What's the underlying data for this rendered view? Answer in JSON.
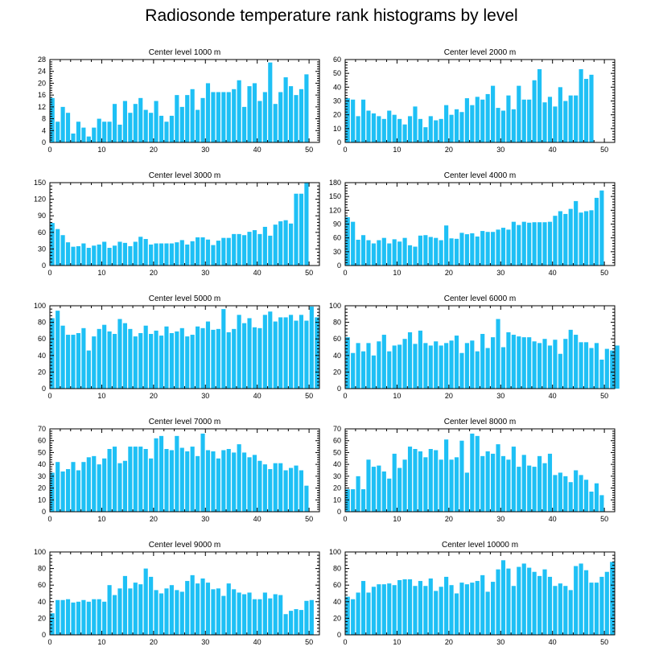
{
  "title": "Radiosonde temperature rank histograms by level",
  "chart_data": [
    {
      "type": "bar",
      "title": "Center level 1000 m",
      "xlim": [
        0,
        52
      ],
      "ylim": [
        0,
        28
      ],
      "xticks": [
        0,
        10,
        20,
        30,
        40,
        50
      ],
      "yticks": [
        0,
        4,
        8,
        12,
        16,
        20,
        24,
        28
      ],
      "values": [
        15,
        7,
        12,
        10,
        3,
        7,
        5,
        2,
        5,
        8,
        7,
        7,
        13,
        6,
        14,
        10,
        13,
        15,
        11,
        10,
        14,
        9,
        7,
        9,
        16,
        12,
        16,
        18,
        11,
        15,
        20,
        17,
        17,
        17,
        17,
        18,
        21,
        12,
        19,
        20,
        14,
        17,
        27,
        13,
        17,
        22,
        19,
        16,
        18,
        23
      ]
    },
    {
      "type": "bar",
      "title": "Center level 2000 m",
      "xlim": [
        0,
        52
      ],
      "ylim": [
        0,
        60
      ],
      "xticks": [
        0,
        10,
        20,
        30,
        40,
        50
      ],
      "yticks": [
        0,
        10,
        20,
        30,
        40,
        50,
        60
      ],
      "values": [
        32,
        31,
        19,
        31,
        23,
        21,
        19,
        17,
        23,
        20,
        17,
        13,
        19,
        26,
        17,
        11,
        19,
        16,
        17,
        27,
        20,
        24,
        22,
        32,
        27,
        33,
        31,
        35,
        41,
        25,
        23,
        34,
        24,
        41,
        31,
        31,
        45,
        53,
        29,
        33,
        26,
        40,
        30,
        34,
        34,
        53,
        46,
        49
      ]
    },
    {
      "type": "bar",
      "title": "Center level 3000 m",
      "xlim": [
        0,
        52
      ],
      "ylim": [
        0,
        150
      ],
      "xticks": [
        0,
        10,
        20,
        30,
        40,
        50
      ],
      "yticks": [
        0,
        30,
        60,
        90,
        120,
        150
      ],
      "values": [
        77,
        66,
        55,
        42,
        34,
        35,
        40,
        32,
        36,
        38,
        43,
        32,
        36,
        43,
        41,
        35,
        43,
        52,
        48,
        38,
        40,
        40,
        40,
        40,
        42,
        46,
        38,
        44,
        51,
        51,
        47,
        37,
        45,
        50,
        50,
        57,
        57,
        55,
        61,
        64,
        57,
        70,
        54,
        74,
        80,
        82,
        76,
        130,
        130,
        152
      ]
    },
    {
      "type": "bar",
      "title": "Center level 4000 m",
      "xlim": [
        0,
        52
      ],
      "ylim": [
        0,
        180
      ],
      "xticks": [
        0,
        10,
        20,
        30,
        40,
        50
      ],
      "yticks": [
        0,
        30,
        60,
        90,
        120,
        150,
        180
      ],
      "values": [
        105,
        95,
        56,
        66,
        55,
        48,
        55,
        60,
        48,
        57,
        52,
        60,
        44,
        41,
        65,
        66,
        62,
        60,
        55,
        87,
        59,
        58,
        71,
        68,
        70,
        63,
        75,
        73,
        73,
        78,
        82,
        78,
        95,
        88,
        95,
        93,
        94,
        94,
        94,
        95,
        108,
        118,
        112,
        123,
        140,
        115,
        118,
        120,
        147,
        163
      ]
    },
    {
      "type": "bar",
      "title": "Center level 5000 m",
      "xlim": [
        0,
        52
      ],
      "ylim": [
        0,
        100
      ],
      "xticks": [
        0,
        10,
        20,
        30,
        40,
        50
      ],
      "yticks": [
        0,
        20,
        40,
        60,
        80,
        100
      ],
      "values": [
        85,
        94,
        76,
        65,
        65,
        67,
        73,
        46,
        63,
        72,
        77,
        69,
        66,
        84,
        79,
        72,
        63,
        67,
        76,
        66,
        70,
        64,
        75,
        67,
        69,
        73,
        63,
        65,
        75,
        73,
        81,
        71,
        72,
        96,
        68,
        72,
        89,
        79,
        85,
        74,
        73,
        89,
        93,
        81,
        86,
        86,
        89,
        82,
        89,
        82,
        99,
        86
      ]
    },
    {
      "type": "bar",
      "title": "Center level 6000 m",
      "xlim": [
        0,
        52
      ],
      "ylim": [
        0,
        100
      ],
      "xticks": [
        0,
        10,
        20,
        30,
        40,
        50
      ],
      "yticks": [
        0,
        20,
        40,
        60,
        80,
        100
      ],
      "values": [
        62,
        43,
        55,
        45,
        55,
        40,
        57,
        65,
        45,
        52,
        53,
        60,
        68,
        54,
        70,
        55,
        52,
        57,
        52,
        55,
        58,
        64,
        43,
        55,
        58,
        45,
        66,
        49,
        62,
        84,
        50,
        68,
        65,
        63,
        62,
        62,
        57,
        55,
        60,
        52,
        59,
        42,
        60,
        71,
        65,
        56,
        56,
        49,
        55,
        35,
        48,
        46,
        52
      ]
    },
    {
      "type": "bar",
      "title": "Center level 7000 m",
      "xlim": [
        0,
        52
      ],
      "ylim": [
        0,
        70
      ],
      "xticks": [
        0,
        10,
        20,
        30,
        40,
        50
      ],
      "yticks": [
        0,
        10,
        20,
        30,
        40,
        50,
        60,
        70
      ],
      "values": [
        33,
        42,
        34,
        36,
        42,
        35,
        42,
        46,
        47,
        40,
        45,
        53,
        55,
        41,
        43,
        55,
        55,
        55,
        53,
        45,
        62,
        64,
        53,
        52,
        64,
        54,
        51,
        55,
        47,
        66,
        52,
        51,
        45,
        52,
        53,
        50,
        57,
        50,
        46,
        48,
        43,
        40,
        36,
        41,
        41,
        35,
        37,
        39,
        35,
        22
      ]
    },
    {
      "type": "bar",
      "title": "Center level 8000 m",
      "xlim": [
        0,
        52
      ],
      "ylim": [
        0,
        70
      ],
      "xticks": [
        0,
        10,
        20,
        30,
        40,
        50
      ],
      "yticks": [
        0,
        10,
        20,
        30,
        40,
        50,
        60,
        70
      ],
      "values": [
        19,
        19,
        30,
        19,
        44,
        38,
        39,
        34,
        28,
        49,
        37,
        44,
        55,
        53,
        51,
        46,
        53,
        52,
        44,
        61,
        44,
        46,
        60,
        33,
        66,
        64,
        47,
        51,
        49,
        57,
        47,
        44,
        55,
        38,
        48,
        39,
        38,
        47,
        41,
        49,
        31,
        33,
        30,
        25,
        35,
        31,
        27,
        17,
        24,
        14
      ]
    },
    {
      "type": "bar",
      "title": "Center level 9000 m",
      "xlim": [
        0,
        52
      ],
      "ylim": [
        0,
        100
      ],
      "xticks": [
        0,
        10,
        20,
        30,
        40,
        50
      ],
      "yticks": [
        0,
        20,
        40,
        60,
        80,
        100
      ],
      "values": [
        26,
        42,
        42,
        43,
        39,
        40,
        42,
        40,
        43,
        43,
        40,
        60,
        48,
        56,
        71,
        56,
        63,
        61,
        80,
        70,
        54,
        50,
        56,
        60,
        54,
        52,
        65,
        72,
        62,
        68,
        63,
        55,
        56,
        47,
        62,
        55,
        51,
        49,
        51,
        43,
        43,
        51,
        44,
        49,
        48,
        25,
        29,
        31,
        30,
        41,
        42
      ]
    },
    {
      "type": "bar",
      "title": "Center level 10000 m",
      "xlim": [
        0,
        52
      ],
      "ylim": [
        0,
        100
      ],
      "xticks": [
        0,
        10,
        20,
        30,
        40,
        50
      ],
      "yticks": [
        0,
        20,
        40,
        60,
        80,
        100
      ],
      "values": [
        46,
        43,
        51,
        65,
        51,
        58,
        61,
        61,
        62,
        60,
        66,
        67,
        67,
        59,
        65,
        59,
        68,
        53,
        58,
        70,
        60,
        50,
        63,
        61,
        63,
        65,
        72,
        52,
        64,
        79,
        90,
        80,
        59,
        82,
        86,
        81,
        76,
        71,
        79,
        70,
        59,
        62,
        59,
        54,
        83,
        86,
        78,
        63,
        63,
        70,
        76,
        88
      ]
    }
  ]
}
